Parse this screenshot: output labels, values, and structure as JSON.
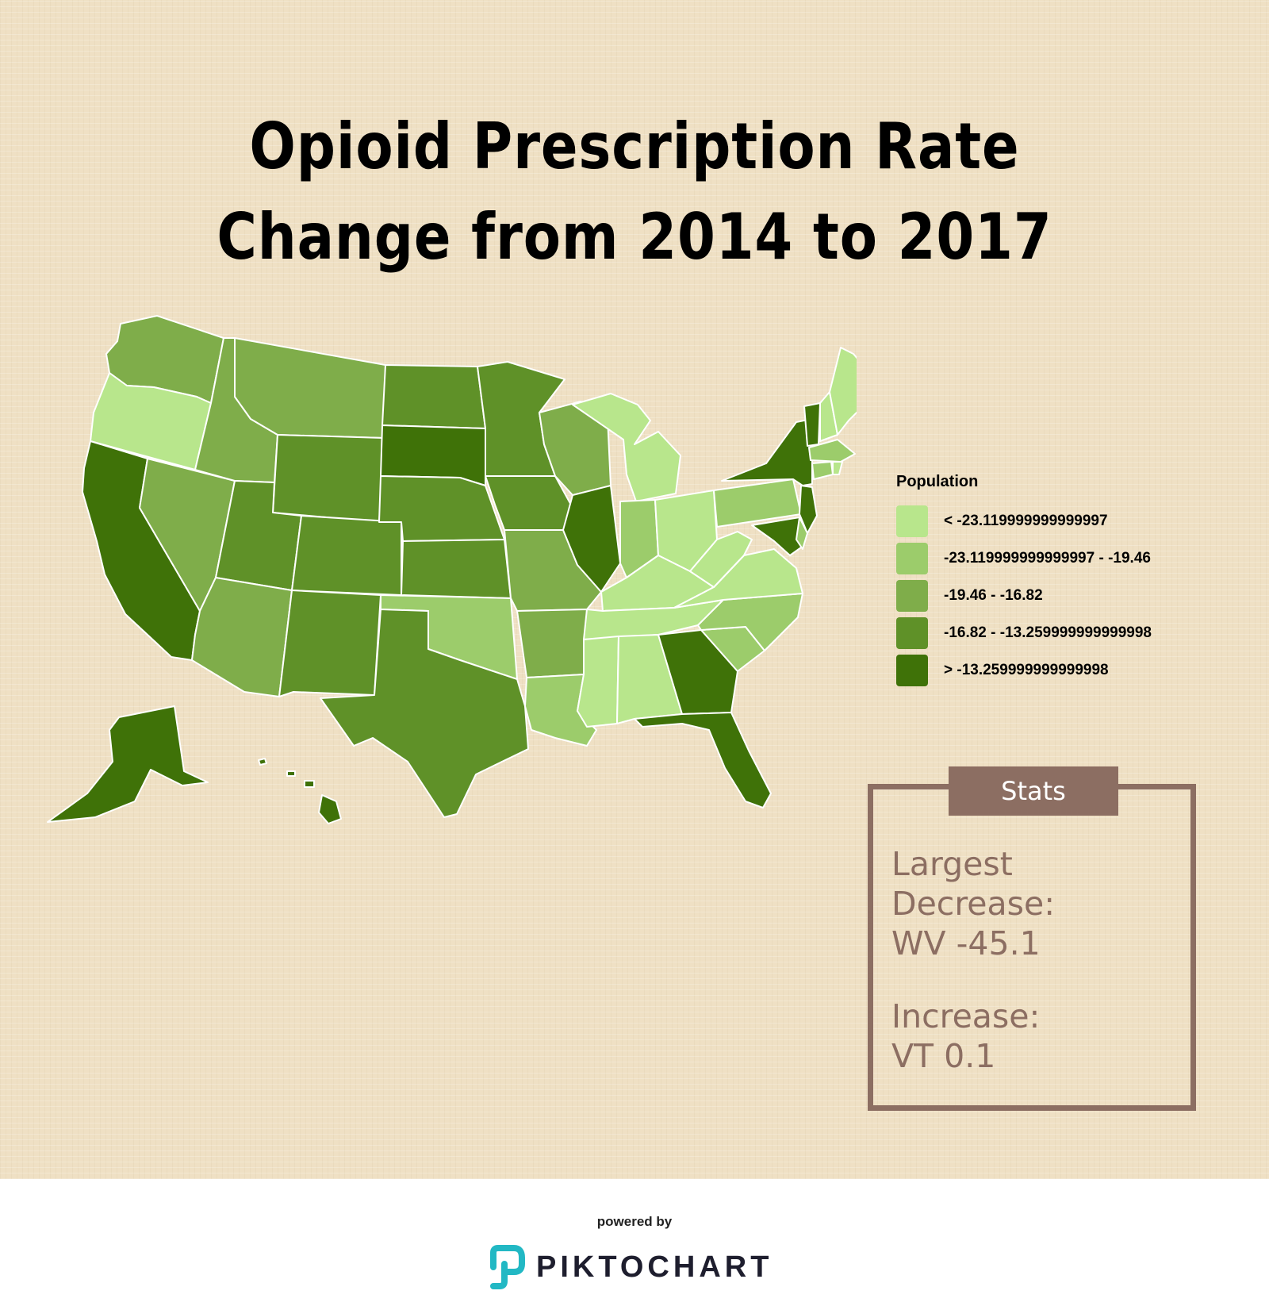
{
  "title": {
    "line1": "Opioid Prescription Rate",
    "line2": "Change from 2014 to 2017"
  },
  "colors": {
    "c1": "#b8e68c",
    "c2": "#9ccc6b",
    "c3": "#7fad4a",
    "c4": "#5f9128",
    "c5": "#3f7208"
  },
  "legend": {
    "title": "Population",
    "items": [
      {
        "label": "< -23.119999999999997",
        "color": "#b8e68c"
      },
      {
        "label": "-23.119999999999997 - -19.46",
        "color": "#9ccc6b"
      },
      {
        "label": "-19.46 - -16.82",
        "color": "#7fad4a"
      },
      {
        "label": "-16.82 - -13.259999999999998",
        "color": "#5f9128"
      },
      {
        "label": "> -13.259999999999998",
        "color": "#3f7208"
      }
    ]
  },
  "stats": {
    "header": "Stats",
    "largest_decrease_line1": "Largest",
    "largest_decrease_line2": "Decrease:",
    "largest_decrease_value": "WV -45.1",
    "increase_label": "Increase:",
    "increase_value": "VT 0.1"
  },
  "footer": {
    "powered_by": "powered by",
    "brand": "PIKTOCHART"
  }
}
